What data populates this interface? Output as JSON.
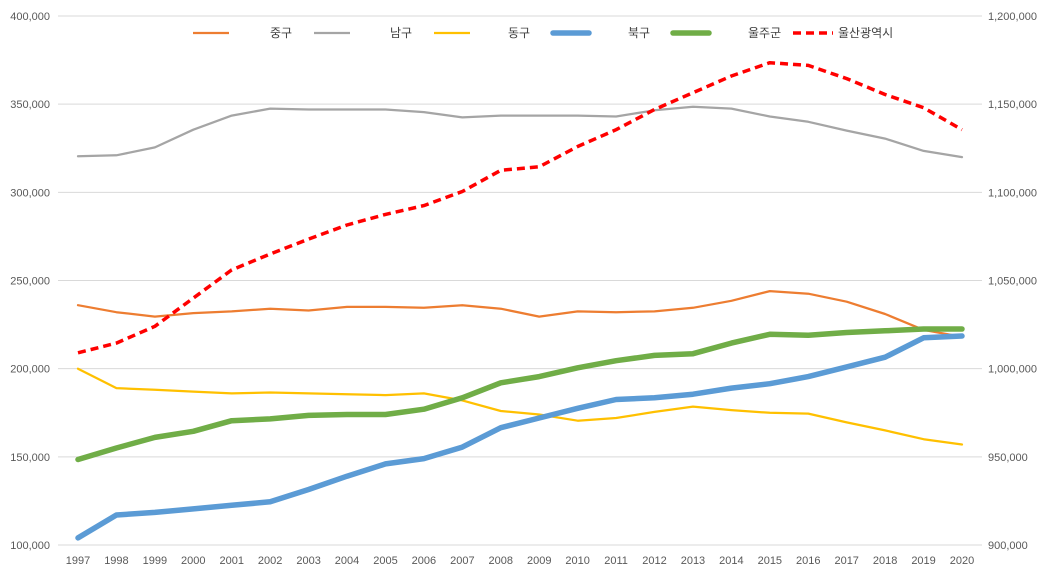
{
  "chart_data": {
    "type": "line",
    "title": "",
    "xlabel": "",
    "ylabel": "",
    "grid": true,
    "legend_position": "top",
    "categories": [
      "1997",
      "1998",
      "1999",
      "2000",
      "2001",
      "2002",
      "2003",
      "2004",
      "2005",
      "2006",
      "2007",
      "2008",
      "2009",
      "2010",
      "2011",
      "2012",
      "2013",
      "2014",
      "2015",
      "2016",
      "2017",
      "2018",
      "2019",
      "2020"
    ],
    "y_left": {
      "min": 100000,
      "max": 400000,
      "ticks": [
        100000,
        150000,
        200000,
        250000,
        300000,
        350000,
        400000
      ],
      "tick_labels": [
        "100,000",
        "150,000",
        "200,000",
        "250,000",
        "300,000",
        "350,000",
        "400,000"
      ]
    },
    "y_right": {
      "min": 900000,
      "max": 1200000,
      "ticks": [
        900000,
        950000,
        1000000,
        1050000,
        1100000,
        1150000,
        1200000
      ],
      "tick_labels": [
        "900,000",
        "950,000",
        "1,000,000",
        "1,050,000",
        "1,100,000",
        "1,150,000",
        "1,200,000"
      ]
    },
    "series": [
      {
        "name": "중구",
        "axis": "left",
        "color": "#ED7D31",
        "dashed": false,
        "thick": false,
        "values": [
          236000,
          232000,
          229500,
          231500,
          232500,
          234000,
          233000,
          235000,
          235000,
          234500,
          236000,
          234000,
          229500,
          232500,
          232000,
          232500,
          234500,
          238500,
          244000,
          242500,
          238000,
          231000,
          222000,
          218000
        ]
      },
      {
        "name": "남구",
        "axis": "left",
        "color": "#A5A5A5",
        "dashed": false,
        "thick": false,
        "values": [
          320500,
          321000,
          325500,
          335500,
          343500,
          347500,
          347000,
          347000,
          347000,
          345500,
          342500,
          343500,
          343500,
          343500,
          343000,
          346500,
          348500,
          347500,
          343000,
          340000,
          335000,
          330500,
          323500,
          320000
        ]
      },
      {
        "name": "동구",
        "axis": "left",
        "color": "#FFC000",
        "dashed": false,
        "thick": false,
        "values": [
          200000,
          189000,
          188000,
          187000,
          186000,
          186500,
          186000,
          185500,
          185000,
          186000,
          182000,
          176000,
          174000,
          170500,
          172000,
          175500,
          178500,
          176500,
          175000,
          174500,
          169500,
          165000,
          160000,
          157000
        ]
      },
      {
        "name": "북구",
        "axis": "left",
        "color": "#5B9BD5",
        "dashed": false,
        "thick": true,
        "values": [
          104000,
          117000,
          118500,
          120500,
          122500,
          124500,
          131500,
          139000,
          146000,
          149000,
          155500,
          166500,
          172000,
          177500,
          182500,
          183500,
          185500,
          189000,
          191500,
          195500,
          201000,
          206500,
          217500,
          218500
        ]
      },
      {
        "name": "울주군",
        "axis": "left",
        "color": "#70AD47",
        "dashed": false,
        "thick": true,
        "values": [
          148500,
          155000,
          161000,
          164500,
          170500,
          171500,
          173500,
          174000,
          174000,
          177000,
          183500,
          192000,
          195500,
          200500,
          204500,
          207500,
          208500,
          214500,
          219500,
          219000,
          220500,
          221500,
          222500,
          222500
        ]
      },
      {
        "name": "울산광역시",
        "axis": "right",
        "color": "#FF0000",
        "dashed": true,
        "thick": false,
        "values": [
          1009000,
          1014500,
          1024000,
          1040000,
          1056000,
          1065000,
          1073500,
          1081500,
          1087500,
          1092500,
          1100500,
          1112500,
          1114500,
          1126000,
          1135500,
          1147000,
          1156500,
          1166000,
          1173500,
          1172000,
          1164500,
          1155500,
          1148000,
          1135500
        ]
      }
    ]
  }
}
